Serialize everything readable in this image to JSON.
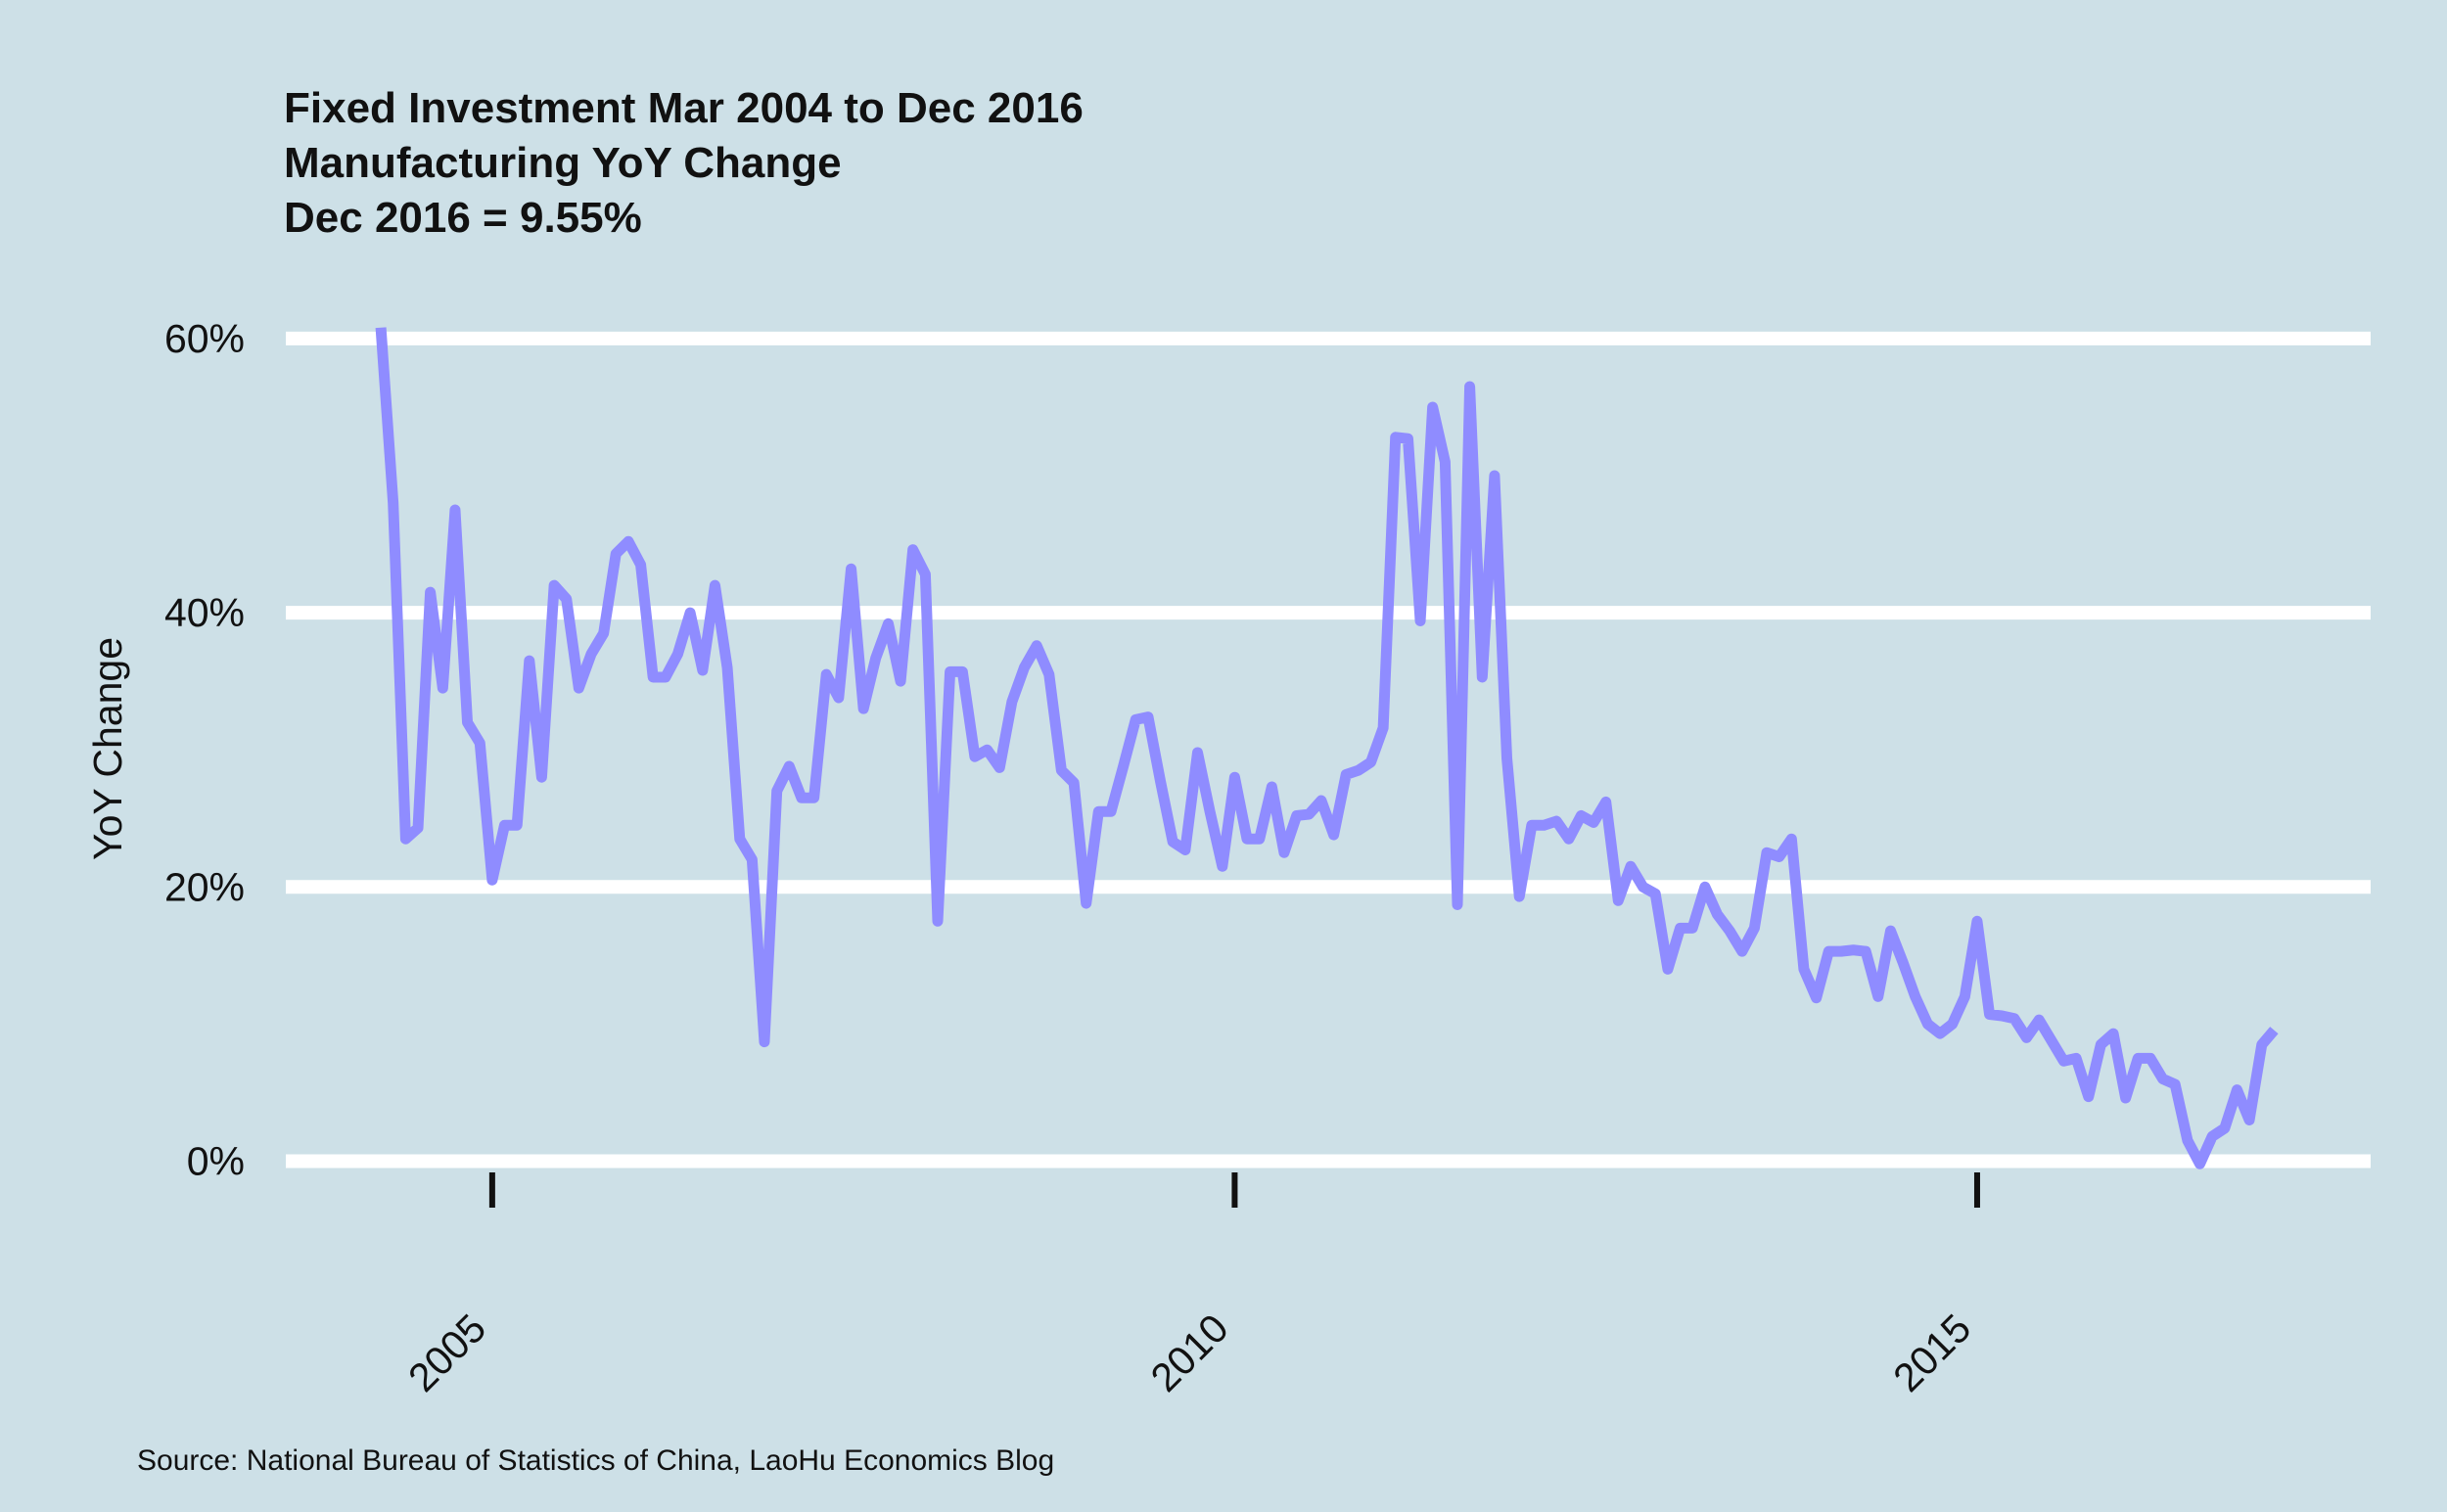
{
  "chart_data": {
    "type": "line",
    "title": "Fixed Investment Mar 2004 to Dec 2016",
    "subtitle": "Manufacturing YoY Change",
    "annotation": "Dec 2016 = 9.55%",
    "y_label": "YoY Change",
    "source": "Source: National Bureau of Statistics of China, LaoHu Economics Blog",
    "x": [
      2004.25,
      2004.333,
      2004.417,
      2004.5,
      2004.583,
      2004.667,
      2004.75,
      2004.833,
      2004.917,
      2005,
      2005.083,
      2005.167,
      2005.25,
      2005.333,
      2005.417,
      2005.5,
      2005.583,
      2005.667,
      2005.75,
      2005.833,
      2005.917,
      2006,
      2006.083,
      2006.167,
      2006.25,
      2006.333,
      2006.417,
      2006.5,
      2006.583,
      2006.667,
      2006.75,
      2006.833,
      2006.917,
      2007,
      2007.083,
      2007.167,
      2007.25,
      2007.333,
      2007.417,
      2007.5,
      2007.583,
      2007.667,
      2007.75,
      2007.833,
      2007.917,
      2008,
      2008.083,
      2008.167,
      2008.25,
      2008.333,
      2008.417,
      2008.5,
      2008.583,
      2008.667,
      2008.75,
      2008.833,
      2008.917,
      2009,
      2009.083,
      2009.167,
      2009.25,
      2009.333,
      2009.417,
      2009.5,
      2009.583,
      2009.667,
      2009.75,
      2009.833,
      2009.917,
      2010,
      2010.083,
      2010.167,
      2010.25,
      2010.333,
      2010.417,
      2010.5,
      2010.583,
      2010.667,
      2010.75,
      2010.833,
      2010.917,
      2011,
      2011.083,
      2011.167,
      2011.25,
      2011.333,
      2011.417,
      2011.5,
      2011.583,
      2011.667,
      2011.75,
      2011.833,
      2011.917,
      2012,
      2012.083,
      2012.167,
      2012.25,
      2012.333,
      2012.417,
      2012.5,
      2012.583,
      2012.667,
      2012.75,
      2012.833,
      2012.917,
      2013,
      2013.083,
      2013.167,
      2013.25,
      2013.333,
      2013.417,
      2013.5,
      2013.583,
      2013.667,
      2013.75,
      2013.833,
      2013.917,
      2014,
      2014.083,
      2014.167,
      2014.25,
      2014.333,
      2014.417,
      2014.5,
      2014.583,
      2014.667,
      2014.75,
      2014.833,
      2014.917,
      2015,
      2015.083,
      2015.167,
      2015.25,
      2015.333,
      2015.417,
      2015.5,
      2015.583,
      2015.667,
      2015.75,
      2015.833,
      2015.917,
      2016,
      2016.083,
      2016.167,
      2016.25,
      2016.333,
      2016.417,
      2016.5,
      2016.583,
      2016.667,
      2016.75,
      2016.833,
      2016.917,
      2017
    ],
    "series": [
      {
        "name": "Manufacturing",
        "color": "#8f8cff",
        "values": [
          60.8,
          48,
          23.5,
          24.3,
          41.5,
          34.5,
          47.5,
          32,
          30.5,
          20.5,
          24.5,
          24.5,
          36.5,
          28,
          42,
          41,
          34.5,
          37,
          38.5,
          44.3,
          45.2,
          43.5,
          35.3,
          35.3,
          37,
          40,
          35.8,
          42,
          36,
          23.5,
          22,
          8.7,
          27,
          28.8,
          26.5,
          26.5,
          35.5,
          33.8,
          43.2,
          33,
          36.7,
          39.2,
          35,
          44.6,
          42.8,
          17.5,
          35.7,
          35.7,
          29.5,
          30,
          28.7,
          33.5,
          36,
          37.6,
          35.5,
          28.5,
          27.6,
          18.8,
          25.5,
          25.5,
          28.8,
          32.2,
          32.4,
          27.7,
          23.3,
          22.7,
          29.8,
          25.5,
          21.5,
          28,
          23.5,
          23.5,
          27.3,
          22.5,
          25.2,
          25.3,
          26.3,
          23.8,
          28.2,
          28.5,
          29.1,
          31.6,
          52.8,
          52.7,
          39.4,
          55,
          51,
          18.7,
          56.5,
          35.3,
          50,
          29.4,
          19.3,
          24.5,
          24.5,
          24.8,
          23.5,
          25.2,
          24.7,
          26.2,
          19,
          21.5,
          20,
          19.5,
          14,
          17,
          17,
          20,
          18,
          16.8,
          15.3,
          17,
          22.5,
          22.2,
          23.5,
          14,
          11.9,
          15.3,
          15.3,
          15.4,
          15.3,
          12,
          16.8,
          14.5,
          12,
          10,
          9.3,
          10,
          12,
          17.5,
          10.7,
          10.6,
          10.4,
          9,
          10.3,
          8.8,
          7.3,
          7.5,
          4.7,
          8.5,
          9.3,
          4.6,
          7.5,
          7.5,
          6,
          5.6,
          1.5,
          -0.2,
          1.8,
          2.4,
          5.2,
          3,
          8.5,
          9.55
        ]
      }
    ],
    "xlim": [
      2003.61,
      2017.65
    ],
    "xticks": [
      2005,
      2010,
      2015
    ],
    "ylim": [
      -3.25,
      63.85
    ],
    "yticks": [
      {
        "value": 0,
        "label": "0%"
      },
      {
        "value": 20,
        "label": "20%"
      },
      {
        "value": 40,
        "label": "40%"
      },
      {
        "value": 60,
        "label": "60%"
      }
    ],
    "grid": true
  }
}
